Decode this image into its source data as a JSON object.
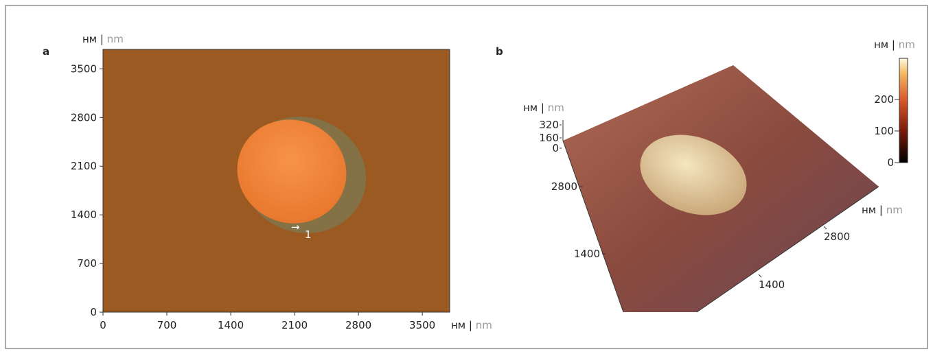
{
  "figure": {
    "units": {
      "ru": "нм",
      "sep": "|",
      "en": "nm"
    },
    "panel_a": {
      "label": "a",
      "annotation": "1",
      "xlim": [
        0,
        3800
      ],
      "ylim": [
        0,
        3780
      ],
      "xticks": [
        0,
        700,
        1400,
        2100,
        2800,
        3500
      ],
      "yticks": [
        0,
        700,
        1400,
        2100,
        2800,
        3500
      ]
    },
    "panel_b": {
      "label": "b",
      "zticks": [
        320,
        160,
        0
      ],
      "left_ticks": [
        2800,
        1400
      ],
      "right_ticks": [
        2800,
        1400
      ],
      "colorbar": {
        "ylim": [
          0,
          330
        ],
        "ticks": [
          0,
          100,
          200
        ]
      }
    }
  }
}
